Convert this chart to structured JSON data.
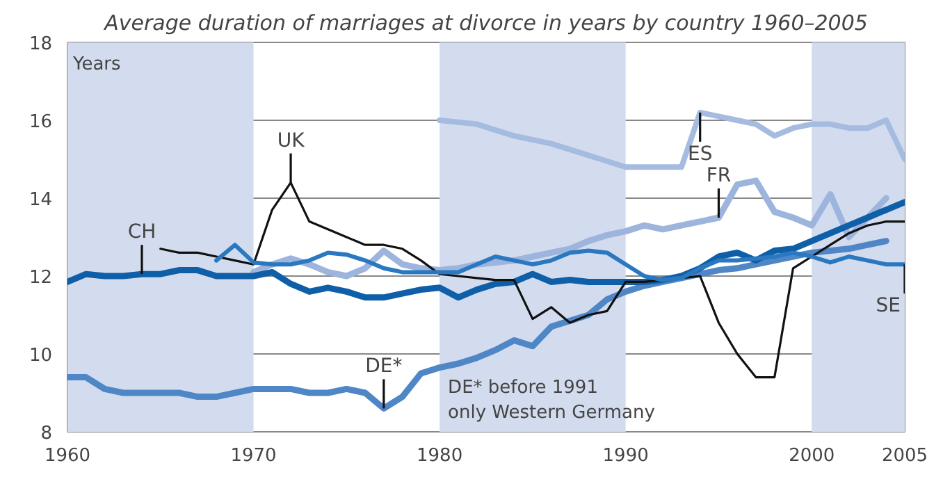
{
  "chart_data": {
    "type": "line",
    "title": "Average duration of marriages at divorce in years by country 1960–2005",
    "ylabel": "Years",
    "xlim": [
      1960,
      2005
    ],
    "xticks": [
      1960,
      1970,
      1980,
      1990,
      2000,
      2005
    ],
    "ylim": [
      8,
      18
    ],
    "yticks": [
      8,
      10,
      12,
      14,
      16,
      18
    ],
    "grid": "y",
    "bands": [
      {
        "axis": "x",
        "from": 1960,
        "to": 1970,
        "color": "#d3dcee"
      },
      {
        "axis": "x",
        "from": 1980,
        "to": 1990,
        "color": "#d3dcee"
      },
      {
        "axis": "x",
        "from": 2000,
        "to": 2005,
        "color": "#d3dcee"
      }
    ],
    "series": [
      {
        "color": "#a6bbe0",
        "x": [
          1980,
          1982,
          1984,
          1986,
          1988,
          1990,
          1991,
          1992,
          1993,
          1994,
          1995,
          1996,
          1997,
          1998,
          1999,
          2000,
          2001,
          2002,
          2003,
          2004,
          2005
        ],
        "values": [
          16.0,
          15.9,
          15.6,
          15.4,
          15.1,
          14.8,
          14.8,
          14.8,
          14.8,
          16.2,
          16.1,
          16.0,
          15.9,
          15.6,
          15.8,
          15.9,
          15.9,
          15.8,
          15.8,
          16.0,
          15.0
        ]
      },
      {
        "color": "#9db4dd",
        "x": [
          1970,
          1971,
          1972,
          1973,
          1974,
          1975,
          1976,
          1977,
          1978,
          1979,
          1980,
          1981,
          1982,
          1983,
          1984,
          1985,
          1986,
          1987,
          1988,
          1989,
          1990,
          1991,
          1992,
          1993,
          1994,
          1995,
          1996,
          1997,
          1998,
          1999,
          2000,
          2001,
          2002,
          2003,
          2004
        ],
        "values": [
          12.1,
          12.3,
          12.45,
          12.3,
          12.1,
          12.0,
          12.2,
          12.65,
          12.3,
          12.2,
          12.15,
          12.2,
          12.3,
          12.35,
          12.4,
          12.5,
          12.6,
          12.7,
          12.9,
          13.05,
          13.15,
          13.3,
          13.2,
          13.3,
          13.4,
          13.5,
          14.35,
          14.45,
          13.65,
          13.5,
          13.3,
          14.1,
          13.0,
          13.5,
          14.0
        ]
      },
      {
        "color": "#4f86c6",
        "x": [
          1960,
          1961,
          1962,
          1963,
          1964,
          1965,
          1966,
          1967,
          1968,
          1969,
          1970,
          1971,
          1972,
          1973,
          1974,
          1975,
          1976,
          1977,
          1978,
          1979,
          1980,
          1981,
          1982,
          1983,
          1984,
          1985,
          1986,
          1987,
          1988,
          1989,
          1990,
          1991,
          1992,
          1993,
          1994,
          1995,
          1996,
          1997,
          1998,
          1999,
          2000,
          2001,
          2002,
          2003,
          2004
        ],
        "values": [
          9.4,
          9.4,
          9.1,
          9.0,
          9.0,
          9.0,
          9.0,
          8.9,
          8.9,
          9.0,
          9.1,
          9.1,
          9.1,
          9.0,
          9.0,
          9.1,
          9.0,
          8.6,
          8.9,
          9.5,
          9.65,
          9.75,
          9.9,
          10.1,
          10.35,
          10.2,
          10.7,
          10.85,
          11.0,
          11.4,
          11.6,
          11.75,
          11.85,
          11.95,
          12.05,
          12.15,
          12.2,
          12.3,
          12.4,
          12.5,
          12.6,
          12.65,
          12.7,
          12.8,
          12.9
        ]
      },
      {
        "color": "#0f5fa8",
        "x": [
          1960,
          1961,
          1962,
          1963,
          1964,
          1965,
          1966,
          1967,
          1968,
          1969,
          1970,
          1971,
          1972,
          1973,
          1974,
          1975,
          1976,
          1977,
          1978,
          1979,
          1980,
          1981,
          1982,
          1983,
          1984,
          1985,
          1986,
          1987,
          1988,
          1989,
          1990,
          1991,
          1992,
          1993,
          1994,
          1995,
          1996,
          1997,
          1998,
          1999,
          2000,
          2001,
          2002,
          2003,
          2004,
          2005
        ],
        "values": [
          11.85,
          12.05,
          12.0,
          12.0,
          12.05,
          12.05,
          12.15,
          12.15,
          12.0,
          12.0,
          12.0,
          12.1,
          11.8,
          11.6,
          11.7,
          11.6,
          11.45,
          11.45,
          11.55,
          11.65,
          11.7,
          11.45,
          11.65,
          11.8,
          11.85,
          12.05,
          11.85,
          11.9,
          11.85,
          11.85,
          11.85,
          11.85,
          11.9,
          12.0,
          12.2,
          12.5,
          12.6,
          12.4,
          12.65,
          12.7,
          12.9,
          13.1,
          13.3,
          13.5,
          13.7,
          13.9
        ]
      },
      {
        "color": "#111111",
        "x": [
          1965,
          1966,
          1967,
          1968,
          1969,
          1970,
          1971,
          1972,
          1973,
          1974,
          1975,
          1976,
          1977,
          1978,
          1979,
          1980,
          1981,
          1982,
          1983,
          1984,
          1985,
          1986,
          1987,
          1988,
          1989,
          1990,
          1991,
          1992,
          1993,
          1994,
          1995,
          1996,
          1997,
          1998,
          1999,
          2000,
          2001,
          2002,
          2003,
          2004,
          2005
        ],
        "values": [
          12.7,
          12.6,
          12.6,
          12.5,
          12.4,
          12.3,
          13.7,
          14.4,
          13.4,
          13.2,
          13.0,
          12.8,
          12.8,
          12.7,
          12.4,
          12.05,
          12.0,
          11.95,
          11.9,
          11.9,
          10.9,
          11.2,
          10.8,
          11.0,
          11.1,
          11.85,
          11.85,
          11.9,
          11.95,
          12.0,
          10.8,
          10.0,
          9.4,
          9.4,
          12.2,
          12.5,
          12.8,
          13.1,
          13.3,
          13.4,
          13.4
        ]
      },
      {
        "color": "#2a78c0",
        "x": [
          1968,
          1969,
          1970,
          1971,
          1972,
          1973,
          1974,
          1975,
          1976,
          1977,
          1978,
          1979,
          1980,
          1981,
          1982,
          1983,
          1984,
          1985,
          1986,
          1987,
          1988,
          1989,
          1990,
          1991,
          1992,
          1993,
          1994,
          1995,
          1996,
          1997,
          1998,
          1999,
          2000,
          2001,
          2002,
          2003,
          2004,
          2005
        ],
        "values": [
          12.4,
          12.8,
          12.35,
          12.3,
          12.3,
          12.4,
          12.6,
          12.55,
          12.4,
          12.2,
          12.1,
          12.1,
          12.1,
          12.1,
          12.3,
          12.5,
          12.4,
          12.3,
          12.4,
          12.6,
          12.65,
          12.6,
          12.3,
          12.0,
          11.9,
          11.95,
          12.2,
          12.4,
          12.4,
          12.45,
          12.5,
          12.6,
          12.5,
          12.35,
          12.5,
          12.4,
          12.3,
          12.3
        ]
      }
    ],
    "annotations": [
      {
        "text": "ES",
        "x": 1994,
        "y": 16.2
      },
      {
        "text": "FR",
        "x": 1995,
        "y": 13.5
      },
      {
        "text": "DE*",
        "x": 1977,
        "y": 8.6
      },
      {
        "text": "CH",
        "x": 1964,
        "y": 12.05
      },
      {
        "text": "UK",
        "x": 1972,
        "y": 14.4
      },
      {
        "text": "SE",
        "x": 2005,
        "y": 12.3
      },
      "DE* before 1991\nonly Western Germany"
    ]
  }
}
